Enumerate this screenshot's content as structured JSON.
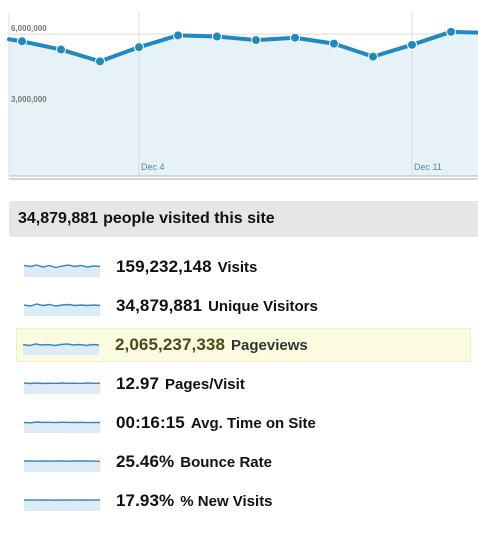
{
  "chart_data": {
    "type": "area",
    "x": [
      "",
      "",
      "",
      "Dec 4",
      "",
      "",
      "",
      "",
      "",
      "",
      "Dec 11",
      "",
      ""
    ],
    "series": [
      {
        "values": [
          5.7,
          5.35,
          4.85,
          5.45,
          5.95,
          5.9,
          5.75,
          5.85,
          5.6,
          5.05,
          5.55,
          6.1,
          6.05
        ]
      }
    ],
    "value_unit_multiplier": 1000000,
    "ylim": [
      0,
      6.6
    ],
    "yticks": [
      {
        "value": 6.0,
        "label": "6,000,000"
      },
      {
        "value": 3.0,
        "label": "3,000,000"
      }
    ],
    "xticks": [
      {
        "index": 3,
        "label": "Dec 4"
      },
      {
        "index": 10,
        "label": "Dec 11"
      }
    ],
    "grid": true,
    "colors": {
      "line": "#1f8ac0",
      "fill": "#e6f1f8",
      "grid": "#dcdcdc"
    }
  },
  "summary": {
    "count": "34,879,881",
    "text": "people visited this site"
  },
  "metrics": [
    {
      "value": "159,232,148",
      "label": "Visits",
      "spark": [
        0.55,
        0.45,
        0.6,
        0.4,
        0.55,
        0.35,
        0.5,
        0.6,
        0.45,
        0.55,
        0.4,
        0.5,
        0.45
      ]
    },
    {
      "value": "34,879,881",
      "label": "Unique Visitors",
      "spark": [
        0.5,
        0.4,
        0.6,
        0.45,
        0.55,
        0.4,
        0.5,
        0.55,
        0.45,
        0.5,
        0.45,
        0.5,
        0.45
      ]
    },
    {
      "value": "2,065,237,338",
      "label": "Pageviews",
      "spark": [
        0.45,
        0.35,
        0.5,
        0.4,
        0.45,
        0.35,
        0.45,
        0.5,
        0.4,
        0.45,
        0.35,
        0.45,
        0.4
      ]
    },
    {
      "value": "12.97",
      "label": "Pages/Visit",
      "spark": [
        0.5,
        0.45,
        0.5,
        0.45,
        0.48,
        0.46,
        0.5,
        0.47,
        0.48,
        0.46,
        0.5,
        0.47,
        0.48
      ]
    },
    {
      "value": "00:16:15",
      "label": "Avg. Time on Site",
      "spark": [
        0.45,
        0.42,
        0.5,
        0.46,
        0.47,
        0.44,
        0.48,
        0.46,
        0.45,
        0.47,
        0.44,
        0.46,
        0.45
      ]
    },
    {
      "value": "25.46%",
      "label": "Bounce Rate",
      "spark": [
        0.5,
        0.5,
        0.48,
        0.5,
        0.49,
        0.5,
        0.5,
        0.48,
        0.5,
        0.5,
        0.5,
        0.49,
        0.47
      ]
    },
    {
      "value": "17.93%",
      "label": "% New Visits",
      "spark": [
        0.5,
        0.5,
        0.49,
        0.5,
        0.5,
        0.48,
        0.5,
        0.5,
        0.49,
        0.5,
        0.5,
        0.49,
        0.5
      ]
    }
  ],
  "highlighted_metric_index": 2,
  "colors": {
    "spark_line": "#3a85b8",
    "spark_fill": "#dcebf6",
    "highlight_bg": "#fbfbe0",
    "summary_bg": "#e6e6e6"
  }
}
